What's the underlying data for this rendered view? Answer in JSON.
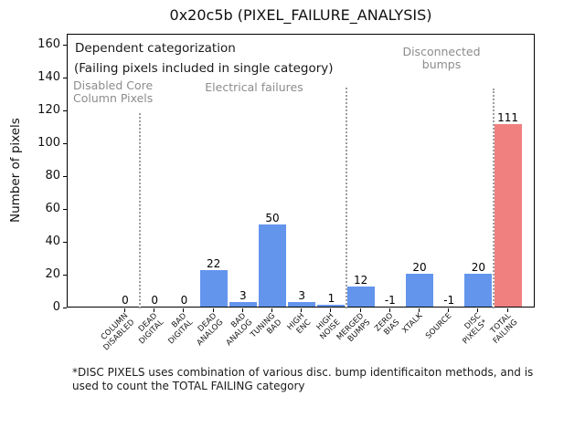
{
  "chart_data": {
    "type": "bar",
    "title": "0x20c5b (PIXEL_FAILURE_ANALYSIS)",
    "ylabel": "Number of pixels",
    "ylim": [
      0,
      166
    ],
    "yticks": [
      0,
      20,
      40,
      60,
      80,
      100,
      120,
      140,
      160
    ],
    "categories": [
      "COLUMN\nDISABLED",
      "DEAD\nDIGITAL",
      "BAD\nDIGITAL",
      "DEAD\nANALOG",
      "BAD\nANALOG",
      "TUNING\nBAD",
      "HIGH\nENC",
      "HIGH\nNOISE",
      "MERGED\nBUMPS",
      "ZERO\nBIAS",
      "XTALK",
      "SOURCE",
      "DISC\nPIXELS*",
      "TOTAL\nFAILING"
    ],
    "values": [
      0,
      0,
      0,
      22,
      3,
      50,
      3,
      1,
      12,
      -1,
      20,
      -1,
      20,
      111
    ],
    "value_labels": [
      "0",
      "0",
      "0",
      "22",
      "3",
      "50",
      "3",
      "1",
      "12",
      "-1",
      "20",
      "-1",
      "20",
      "111"
    ],
    "highlight_index": 13,
    "colors": {
      "bar": "#6495ED",
      "highlight_bar": "#F08080",
      "region_text": "#8c8c8c",
      "separator": "#9e9e9e"
    },
    "annotations": [
      {
        "text": "Dependent categorization",
        "style": "primary"
      },
      {
        "text": "(Failing pixels included in single category)",
        "style": "primary"
      },
      {
        "text": "Disabled Core\nColumn Pixels",
        "style": "region"
      },
      {
        "text": "Electrical failures",
        "style": "region"
      },
      {
        "text": "Disconnected\nbumps",
        "style": "region"
      }
    ],
    "separators": [
      {
        "after_category": "COLUMN DISABLED",
        "x_index": 0.5
      },
      {
        "after_category": "HIGH NOISE",
        "x_index": 7.5
      },
      {
        "after_category": "DISC PIXELS*",
        "x_index": 12.5
      }
    ],
    "footnote_lines": [
      "*DISC PIXELS uses combination of various disc. bump identificaiton methods, and is",
      "used to count the TOTAL FAILING category"
    ]
  }
}
